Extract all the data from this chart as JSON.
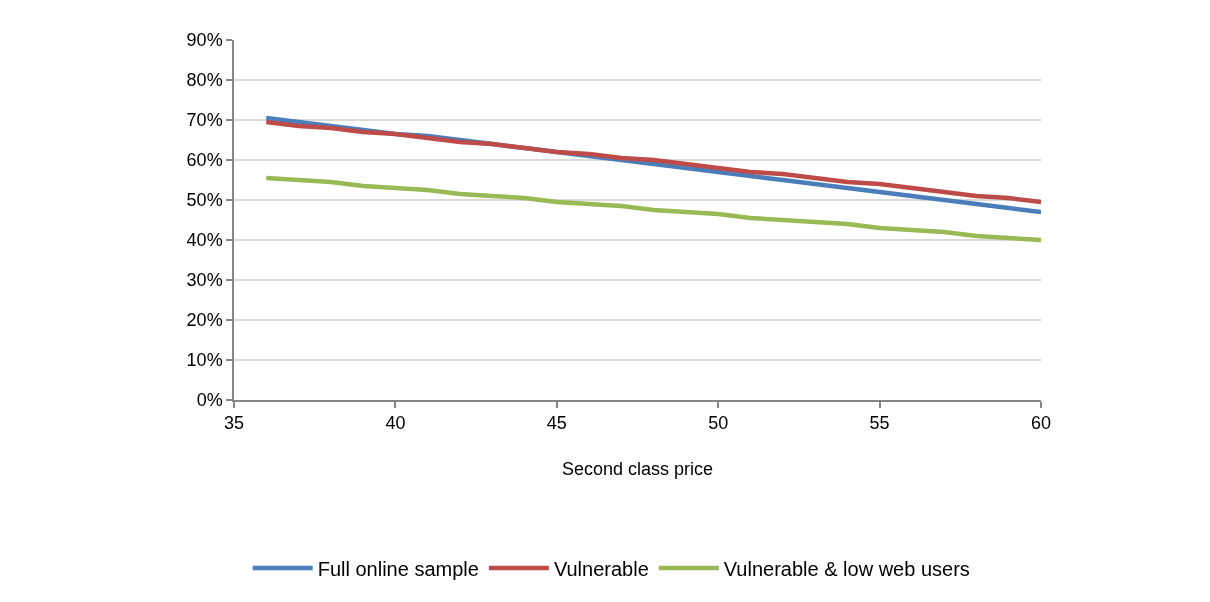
{
  "chart_data": {
    "type": "line",
    "xlabel": "Second class price",
    "x": [
      36,
      37,
      38,
      39,
      40,
      41,
      42,
      43,
      44,
      45,
      46,
      47,
      48,
      49,
      50,
      51,
      52,
      53,
      54,
      55,
      56,
      57,
      58,
      59,
      60
    ],
    "series": [
      {
        "name": "Full online sample",
        "color": "#4a7ebb",
        "values": [
          70.5,
          69.5,
          68.5,
          67.5,
          66.5,
          66,
          65,
          64,
          63,
          62,
          61,
          60,
          59,
          58,
          57,
          56,
          55,
          54,
          53,
          52,
          51,
          50,
          49,
          48,
          47
        ]
      },
      {
        "name": "Vulnerable",
        "color": "#be4b48",
        "values": [
          69.5,
          68.5,
          68,
          67,
          66.5,
          65.5,
          64.5,
          64,
          63,
          62,
          61.5,
          60.5,
          60,
          59,
          58,
          57,
          56.5,
          55.5,
          54.5,
          54,
          53,
          52,
          51,
          50.5,
          49.5
        ]
      },
      {
        "name": "Vulnerable & low web users",
        "color": "#98b954",
        "values": [
          55.5,
          55,
          54.5,
          53.5,
          53,
          52.5,
          51.5,
          51,
          50.5,
          49.5,
          49,
          48.5,
          47.5,
          47,
          46.5,
          45.5,
          45,
          44.5,
          44,
          43,
          42.5,
          42,
          41,
          40.5,
          40
        ]
      }
    ],
    "xlim": [
      35,
      60
    ],
    "xticks": [
      35,
      40,
      45,
      50,
      55,
      60
    ],
    "ylim": [
      0,
      90
    ],
    "yticks": [
      {
        "value": 0,
        "label": "0%"
      },
      {
        "value": 10,
        "label": "10%"
      },
      {
        "value": 20,
        "label": "20%"
      },
      {
        "value": 30,
        "label": "30%"
      },
      {
        "value": 40,
        "label": "40%"
      },
      {
        "value": 50,
        "label": "50%"
      },
      {
        "value": 60,
        "label": "60%"
      },
      {
        "value": 70,
        "label": "70%"
      },
      {
        "value": 80,
        "label": "80%"
      },
      {
        "value": 90,
        "label": "90%"
      }
    ],
    "grid": "y",
    "legend": "bottom",
    "marker": "none",
    "line_style": "solid"
  }
}
